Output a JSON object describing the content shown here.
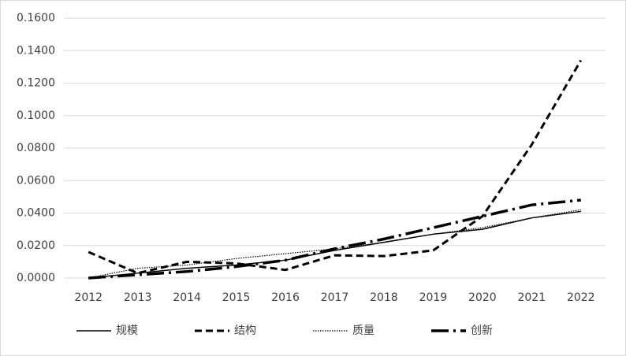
{
  "chart_data": {
    "type": "line",
    "categories": [
      "2012",
      "2013",
      "2014",
      "2015",
      "2016",
      "2017",
      "2018",
      "2019",
      "2020",
      "2021",
      "2022"
    ],
    "series": [
      {
        "name": "规模",
        "color": "#000000",
        "style": "solid",
        "values": [
          0,
          0.003,
          0.006,
          0.008,
          0.011,
          0.017,
          0.022,
          0.027,
          0.03,
          0.037,
          0.041
        ]
      },
      {
        "name": "结构",
        "color": "#000000",
        "style": "dashed",
        "values": [
          0.016,
          0.003,
          0.01,
          0.009,
          0.005,
          0.014,
          0.0135,
          0.017,
          0.038,
          0.082,
          0.134
        ]
      },
      {
        "name": "质量",
        "color": "#000000",
        "style": "dotted",
        "values": [
          0,
          0.006,
          0.008,
          0.012,
          0.015,
          0.018,
          0.022,
          0.027,
          0.031,
          0.037,
          0.042
        ]
      },
      {
        "name": "创新",
        "color": "#000000",
        "style": "dashdot",
        "values": [
          0,
          0.002,
          0.004,
          0.007,
          0.011,
          0.018,
          0.024,
          0.031,
          0.038,
          0.045,
          0.048
        ]
      }
    ],
    "ylim": [
      0,
      0.16
    ],
    "yticks": [
      {
        "value": 0,
        "label": "0.0000"
      },
      {
        "value": 0.02,
        "label": "0.0200"
      },
      {
        "value": 0.04,
        "label": "0.0400"
      },
      {
        "value": 0.06,
        "label": "0.0600"
      },
      {
        "value": 0.08,
        "label": "0.0800"
      },
      {
        "value": 0.1,
        "label": "0.1000"
      },
      {
        "value": 0.12,
        "label": "0.1200"
      },
      {
        "value": 0.14,
        "label": "0.1400"
      },
      {
        "value": 0.16,
        "label": "0.1600"
      }
    ],
    "grid": true,
    "legend": "bottom"
  }
}
